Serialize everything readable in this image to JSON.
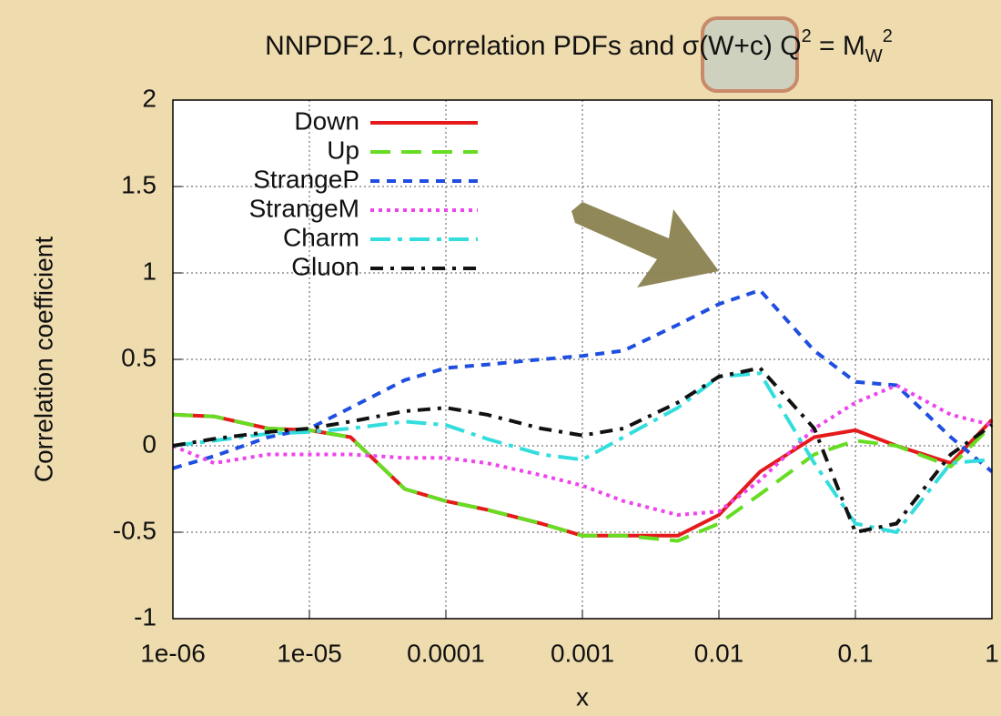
{
  "chart_data": {
    "type": "line",
    "title": [
      "NNPDF2.1,  Correlation PDFs and ",
      "σ(W+c)",
      " Q",
      "2",
      " = M",
      "W",
      "2"
    ],
    "xlabel": "x",
    "ylabel": "Correlation coefficient",
    "log_x": true,
    "grid": true,
    "legend": "top-left",
    "xlim": [
      1e-06,
      1
    ],
    "ylim": [
      -1,
      2
    ],
    "xticks": [
      {
        "value": 1e-06,
        "label": "1e-06"
      },
      {
        "value": 1e-05,
        "label": "1e-05"
      },
      0.0001,
      0.001,
      0.01,
      0.1,
      1
    ],
    "yticks": [
      -1,
      -0.5,
      0,
      0.5,
      1,
      1.5,
      2
    ],
    "x": [
      1e-06,
      2e-06,
      5e-06,
      1e-05,
      2e-05,
      5e-05,
      0.0001,
      0.0002,
      0.0005,
      0.001,
      0.002,
      0.005,
      0.01,
      0.02,
      0.05,
      0.1,
      0.2,
      0.5,
      1
    ],
    "series": [
      {
        "name": "Down",
        "color": "#e41a1c",
        "dash": "none",
        "values": [
          0.18,
          0.17,
          0.1,
          0.09,
          0.05,
          -0.25,
          -0.32,
          -0.37,
          -0.45,
          -0.52,
          -0.52,
          -0.52,
          -0.4,
          -0.15,
          0.05,
          0.09,
          0.0,
          -0.1,
          0.15
        ]
      },
      {
        "name": "Up",
        "color": "#66dd22",
        "dash": "22 12",
        "values": [
          0.18,
          0.17,
          0.1,
          0.09,
          0.05,
          -0.25,
          -0.32,
          -0.37,
          -0.45,
          -0.52,
          -0.52,
          -0.55,
          -0.45,
          -0.28,
          -0.05,
          0.03,
          0.0,
          -0.12,
          0.12
        ]
      },
      {
        "name": "StrangeP",
        "color": "#1f4fe0",
        "dash": "10 8",
        "values": [
          -0.13,
          -0.06,
          0.05,
          0.1,
          0.22,
          0.38,
          0.45,
          0.47,
          0.5,
          0.52,
          0.55,
          0.7,
          0.82,
          0.9,
          0.55,
          0.37,
          0.35,
          0.05,
          -0.15
        ]
      },
      {
        "name": "StrangeM",
        "color": "#ee44ee",
        "dash": "4 5",
        "values": [
          0.0,
          -0.1,
          -0.05,
          -0.05,
          -0.05,
          -0.07,
          -0.07,
          -0.1,
          -0.17,
          -0.23,
          -0.32,
          -0.4,
          -0.38,
          -0.2,
          0.1,
          0.25,
          0.35,
          0.18,
          0.12
        ]
      },
      {
        "name": "Charm",
        "color": "#33dddd",
        "dash": "22 8 5 8",
        "values": [
          0.0,
          0.03,
          0.07,
          0.08,
          0.1,
          0.14,
          0.12,
          0.04,
          -0.05,
          -0.08,
          0.05,
          0.22,
          0.4,
          0.42,
          -0.1,
          -0.45,
          -0.5,
          -0.1,
          -0.08
        ]
      },
      {
        "name": "Gluon",
        "color": "#111111",
        "dash": "14 8 4 8",
        "values": [
          0.0,
          0.04,
          0.08,
          0.1,
          0.14,
          0.2,
          0.22,
          0.18,
          0.1,
          0.06,
          0.1,
          0.25,
          0.4,
          0.45,
          0.1,
          -0.5,
          -0.45,
          -0.05,
          0.12
        ]
      }
    ]
  }
}
